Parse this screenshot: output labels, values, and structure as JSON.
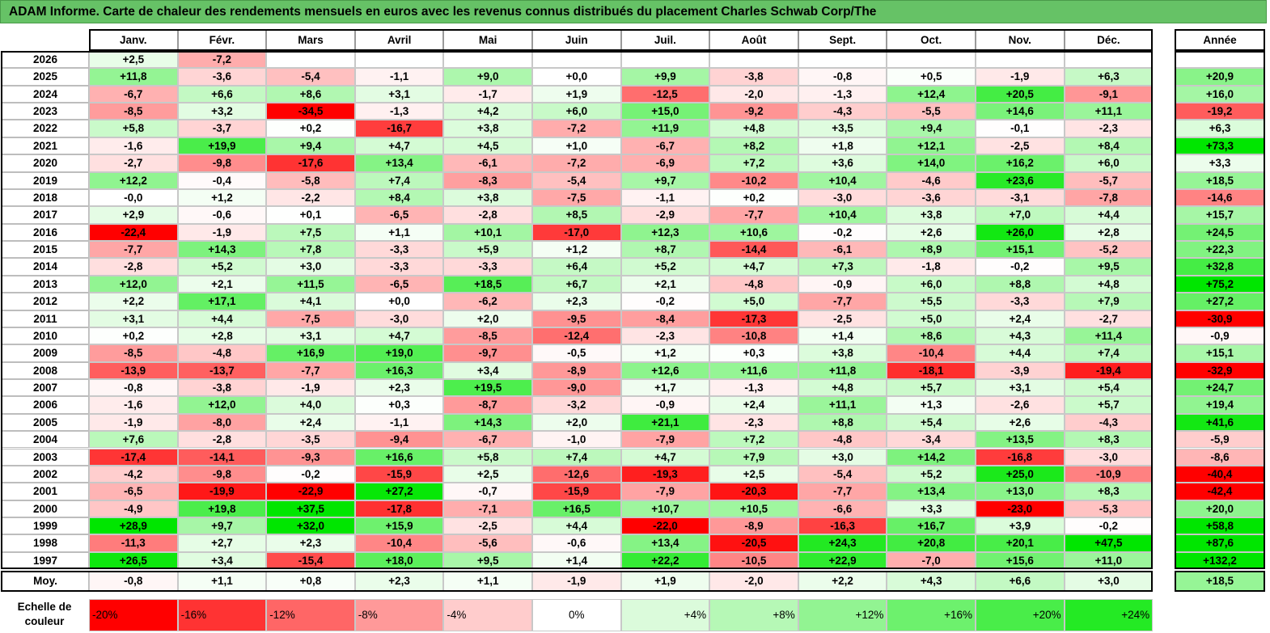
{
  "title": "ADAM Informe. Carte de chaleur des rendements mensuels en euros avec les revenus connus distribués du placement Charles Schwab Corp/The",
  "colors": {
    "red": "#ff0000",
    "white": "#ffffff",
    "green": "#00e600",
    "title_bg": "#66c266"
  },
  "chart_data": {
    "type": "heatmap",
    "title": "ADAM Informe. Carte de chaleur des rendements mensuels en euros avec les revenus connus distribués du placement Charles Schwab Corp/The",
    "months": [
      "Janv.",
      "Févr.",
      "Mars",
      "Avril",
      "Mai",
      "Juin",
      "Juil.",
      "Août",
      "Sept.",
      "Oct.",
      "Nov.",
      "Déc."
    ],
    "year_header": "Année",
    "rows": [
      {
        "year": "2026",
        "months": [
          "+2,5",
          "-7,2",
          "",
          "",
          "",
          "",
          "",
          "",
          "",
          "",
          "",
          ""
        ],
        "annual": ""
      },
      {
        "year": "2025",
        "months": [
          "+11,8",
          "-3,6",
          "-5,4",
          "-1,1",
          "+9,0",
          "+0,0",
          "+9,9",
          "-3,8",
          "-0,8",
          "+0,5",
          "-1,9",
          "+6,3"
        ],
        "annual": "+20,9"
      },
      {
        "year": "2024",
        "months": [
          "-6,7",
          "+6,6",
          "+8,6",
          "+3,1",
          "-1,7",
          "+1,9",
          "-12,5",
          "-2,0",
          "-1,3",
          "+12,4",
          "+20,5",
          "-9,1"
        ],
        "annual": "+16,0"
      },
      {
        "year": "2023",
        "months": [
          "-8,5",
          "+3,2",
          "-34,5",
          "-1,3",
          "+4,2",
          "+6,0",
          "+15,0",
          "-9,2",
          "-4,3",
          "-5,5",
          "+14,6",
          "+11,1"
        ],
        "annual": "-19,2"
      },
      {
        "year": "2022",
        "months": [
          "+5,8",
          "-3,7",
          "+0,2",
          "-16,7",
          "+3,8",
          "-7,2",
          "+11,9",
          "+4,8",
          "+3,5",
          "+9,4",
          "-0,1",
          "-2,3"
        ],
        "annual": "+6,3"
      },
      {
        "year": "2021",
        "months": [
          "-1,6",
          "+19,9",
          "+9,4",
          "+4,7",
          "+4,5",
          "+1,0",
          "-6,7",
          "+8,2",
          "+1,8",
          "+12,1",
          "-2,5",
          "+8,4"
        ],
        "annual": "+73,3"
      },
      {
        "year": "2020",
        "months": [
          "-2,7",
          "-9,8",
          "-17,6",
          "+13,4",
          "-6,1",
          "-7,2",
          "-6,9",
          "+7,2",
          "+3,6",
          "+14,0",
          "+16,2",
          "+6,0"
        ],
        "annual": "+3,3"
      },
      {
        "year": "2019",
        "months": [
          "+12,2",
          "-0,4",
          "-5,8",
          "+7,4",
          "-8,3",
          "-5,4",
          "+9,7",
          "-10,2",
          "+10,4",
          "-4,6",
          "+23,6",
          "-5,7"
        ],
        "annual": "+18,5"
      },
      {
        "year": "2018",
        "months": [
          "-0,0",
          "+1,2",
          "-2,2",
          "+8,4",
          "+3,8",
          "-7,5",
          "-1,1",
          "+0,2",
          "-3,0",
          "-3,6",
          "-3,1",
          "-7,8"
        ],
        "annual": "-14,6"
      },
      {
        "year": "2017",
        "months": [
          "+2,9",
          "-0,6",
          "+0,1",
          "-6,5",
          "-2,8",
          "+8,5",
          "-2,9",
          "-7,7",
          "+10,4",
          "+3,8",
          "+7,0",
          "+4,4"
        ],
        "annual": "+15,7"
      },
      {
        "year": "2016",
        "months": [
          "-22,4",
          "-1,9",
          "+7,5",
          "+1,1",
          "+10,1",
          "-17,0",
          "+12,3",
          "+10,6",
          "-0,2",
          "+2,6",
          "+26,0",
          "+2,8"
        ],
        "annual": "+24,5"
      },
      {
        "year": "2015",
        "months": [
          "-7,7",
          "+14,3",
          "+7,8",
          "-3,3",
          "+5,9",
          "+1,2",
          "+8,7",
          "-14,4",
          "-6,1",
          "+8,9",
          "+15,1",
          "-5,2"
        ],
        "annual": "+22,3"
      },
      {
        "year": "2014",
        "months": [
          "-2,8",
          "+5,2",
          "+3,0",
          "-3,3",
          "-3,3",
          "+6,4",
          "+5,2",
          "+4,7",
          "+7,3",
          "-1,8",
          "-0,2",
          "+9,5"
        ],
        "annual": "+32,8"
      },
      {
        "year": "2013",
        "months": [
          "+12,0",
          "+2,1",
          "+11,5",
          "-6,5",
          "+18,5",
          "+6,7",
          "+2,1",
          "-4,8",
          "-0,9",
          "+6,0",
          "+8,8",
          "+4,8"
        ],
        "annual": "+75,2"
      },
      {
        "year": "2012",
        "months": [
          "+2,2",
          "+17,1",
          "+4,1",
          "+0,0",
          "-6,2",
          "+2,3",
          "-0,2",
          "+5,0",
          "-7,7",
          "+5,5",
          "-3,3",
          "+7,9"
        ],
        "annual": "+27,2"
      },
      {
        "year": "2011",
        "months": [
          "+3,1",
          "+4,4",
          "-7,5",
          "-3,0",
          "+2,0",
          "-9,5",
          "-8,4",
          "-17,3",
          "-2,5",
          "+5,0",
          "+2,4",
          "-2,7"
        ],
        "annual": "-30,9"
      },
      {
        "year": "2010",
        "months": [
          "+0,2",
          "+2,8",
          "+3,1",
          "+4,7",
          "-8,5",
          "-12,4",
          "-2,3",
          "-10,8",
          "+1,4",
          "+8,6",
          "+4,3",
          "+11,4"
        ],
        "annual": "-0,9"
      },
      {
        "year": "2009",
        "months": [
          "-8,5",
          "-4,8",
          "+16,9",
          "+19,0",
          "-9,7",
          "-0,5",
          "+1,2",
          "+0,3",
          "+3,8",
          "-10,4",
          "+4,4",
          "+7,4"
        ],
        "annual": "+15,1"
      },
      {
        "year": "2008",
        "months": [
          "-13,9",
          "-13,7",
          "-7,7",
          "+16,3",
          "+3,4",
          "-8,9",
          "+12,6",
          "+11,6",
          "+11,8",
          "-18,1",
          "-3,9",
          "-19,4"
        ],
        "annual": "-32,9"
      },
      {
        "year": "2007",
        "months": [
          "-0,8",
          "-3,8",
          "-1,9",
          "+2,3",
          "+19,5",
          "-9,0",
          "+1,7",
          "-1,3",
          "+4,8",
          "+5,7",
          "+3,1",
          "+5,4"
        ],
        "annual": "+24,7"
      },
      {
        "year": "2006",
        "months": [
          "-1,6",
          "+12,0",
          "+4,0",
          "+0,3",
          "-8,7",
          "-3,2",
          "-0,9",
          "+2,4",
          "+11,1",
          "+1,3",
          "-2,6",
          "+5,7"
        ],
        "annual": "+19,4"
      },
      {
        "year": "2005",
        "months": [
          "-1,9",
          "-8,0",
          "+2,4",
          "-1,1",
          "+14,3",
          "+2,0",
          "+21,1",
          "-2,3",
          "+8,8",
          "+5,4",
          "+2,6",
          "-4,3"
        ],
        "annual": "+41,6"
      },
      {
        "year": "2004",
        "months": [
          "+7,6",
          "-2,8",
          "-3,5",
          "-9,4",
          "-6,7",
          "-1,0",
          "-7,9",
          "+7,2",
          "-4,8",
          "-3,4",
          "+13,5",
          "+8,3"
        ],
        "annual": "-5,9"
      },
      {
        "year": "2003",
        "months": [
          "-17,4",
          "-14,1",
          "-9,3",
          "+16,6",
          "+5,8",
          "+7,4",
          "+4,7",
          "+7,9",
          "+3,0",
          "+14,2",
          "-16,8",
          "-3,0"
        ],
        "annual": "-8,6"
      },
      {
        "year": "2002",
        "months": [
          "-4,2",
          "-9,8",
          "-0,2",
          "-15,9",
          "+2,5",
          "-12,6",
          "-19,3",
          "+2,5",
          "-5,4",
          "+5,2",
          "+25,0",
          "-10,9"
        ],
        "annual": "-40,4"
      },
      {
        "year": "2001",
        "months": [
          "-6,5",
          "-19,9",
          "-22,9",
          "+27,2",
          "-0,7",
          "-15,9",
          "-7,9",
          "-20,3",
          "-7,7",
          "+13,4",
          "+13,0",
          "+8,3"
        ],
        "annual": "-42,4"
      },
      {
        "year": "2000",
        "months": [
          "-4,9",
          "+19,8",
          "+37,5",
          "-17,8",
          "-7,1",
          "+16,5",
          "+10,7",
          "+10,5",
          "-6,6",
          "+3,3",
          "-23,0",
          "-5,3"
        ],
        "annual": "+20,0"
      },
      {
        "year": "1999",
        "months": [
          "+28,9",
          "+9,7",
          "+32,0",
          "+15,9",
          "-2,5",
          "+4,4",
          "-22,0",
          "-8,9",
          "-16,3",
          "+16,7",
          "+3,9",
          "-0,2"
        ],
        "annual": "+58,8"
      },
      {
        "year": "1998",
        "months": [
          "-11,3",
          "+2,7",
          "+2,3",
          "-10,4",
          "-5,6",
          "-0,6",
          "+13,4",
          "-20,5",
          "+24,3",
          "+20,8",
          "+20,1",
          "+47,5"
        ],
        "annual": "+87,6"
      },
      {
        "year": "1997",
        "months": [
          "+26,5",
          "+3,4",
          "-15,4",
          "+18,0",
          "+9,5",
          "+1,4",
          "+22,2",
          "-10,5",
          "+22,9",
          "-7,0",
          "+15,6",
          "+11,0"
        ],
        "annual": "+132,2"
      }
    ],
    "average": {
      "label": "Moy.",
      "months": [
        "-0,8",
        "+1,1",
        "+0,8",
        "+2,3",
        "+1,1",
        "-1,9",
        "+1,9",
        "-2,0",
        "+2,2",
        "+4,3",
        "+6,6",
        "+3,0"
      ],
      "annual": "+18,5"
    },
    "color_scale": {
      "label": "Echelle de couleur",
      "steps": [
        "-20%",
        "-16%",
        "-12%",
        "-8%",
        "-4%",
        "0%",
        "+4%",
        "+8%",
        "+12%",
        "+16%",
        "+20%",
        "+24%"
      ],
      "values": [
        -20,
        -16,
        -12,
        -8,
        -4,
        0,
        4,
        8,
        12,
        16,
        20,
        24
      ]
    }
  }
}
